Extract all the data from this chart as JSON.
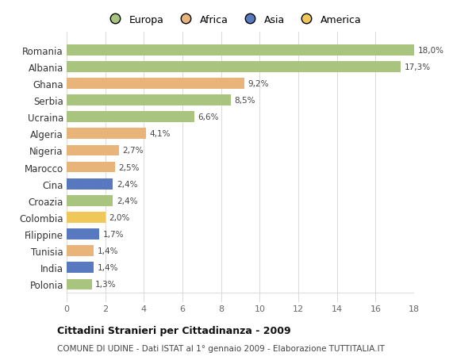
{
  "categories": [
    "Romania",
    "Albania",
    "Ghana",
    "Serbia",
    "Ucraina",
    "Algeria",
    "Nigeria",
    "Marocco",
    "Cina",
    "Croazia",
    "Colombia",
    "Filippine",
    "Tunisia",
    "India",
    "Polonia"
  ],
  "values": [
    18.0,
    17.3,
    9.2,
    8.5,
    6.6,
    4.1,
    2.7,
    2.5,
    2.4,
    2.4,
    2.0,
    1.7,
    1.4,
    1.4,
    1.3
  ],
  "labels": [
    "18,0%",
    "17,3%",
    "9,2%",
    "8,5%",
    "6,6%",
    "4,1%",
    "2,7%",
    "2,5%",
    "2,4%",
    "2,4%",
    "2,0%",
    "1,7%",
    "1,4%",
    "1,4%",
    "1,3%"
  ],
  "continents": [
    "Europa",
    "Europa",
    "Africa",
    "Europa",
    "Europa",
    "Africa",
    "Africa",
    "Africa",
    "Asia",
    "Europa",
    "America",
    "Asia",
    "Africa",
    "Asia",
    "Europa"
  ],
  "colors": {
    "Europa": "#a8c47e",
    "Africa": "#e8b47a",
    "Asia": "#5878c0",
    "America": "#f0c85a"
  },
  "legend_order": [
    "Europa",
    "Africa",
    "Asia",
    "America"
  ],
  "xlim": [
    0,
    18
  ],
  "xticks": [
    0,
    2,
    4,
    6,
    8,
    10,
    12,
    14,
    16,
    18
  ],
  "title": "Cittadini Stranieri per Cittadinanza - 2009",
  "subtitle": "COMUNE DI UDINE - Dati ISTAT al 1° gennaio 2009 - Elaborazione TUTTITALIA.IT",
  "background_color": "#ffffff",
  "grid_color": "#dddddd"
}
